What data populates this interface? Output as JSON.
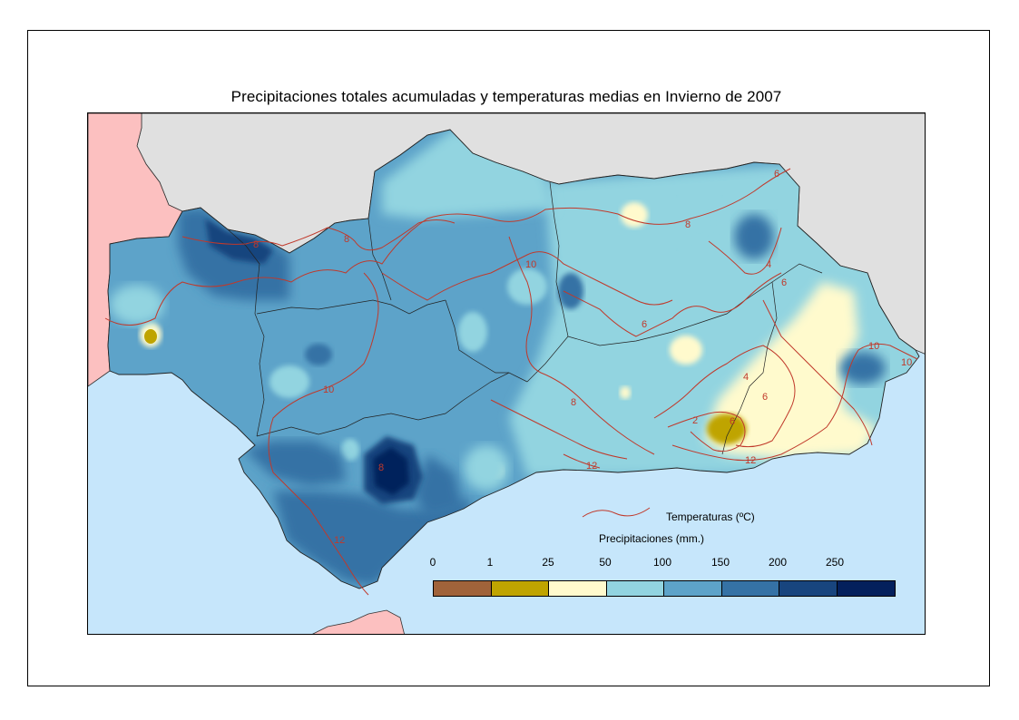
{
  "title": "Precipitaciones totales acumuladas y temperaturas medias en Invierno de 2007",
  "legend": {
    "temperature_label": "Temperaturas (ºC)",
    "temperature_color": "#c0392b",
    "precipitation_label": "Precipitaciones (mm.)",
    "ticks": [
      "0",
      "1",
      "25",
      "50",
      "100",
      "150",
      "200",
      "250"
    ],
    "classes": [
      {
        "range": "0-1",
        "color": "#a0633a"
      },
      {
        "range": "1-25",
        "color": "#bfa400"
      },
      {
        "range": "25-50",
        "color": "#fffacd"
      },
      {
        "range": "50-100",
        "color": "#92d4e0"
      },
      {
        "range": "100-150",
        "color": "#5da3c9"
      },
      {
        "range": "150-200",
        "color": "#3572a5"
      },
      {
        "range": "200-250",
        "color": "#18457e"
      },
      {
        "range": ">250",
        "color": "#04205c"
      }
    ]
  },
  "map": {
    "sea_color": "#c6e6fb",
    "neighbor_land_color": "#e0e0e0",
    "portugal_color": "#fcc0c0",
    "isotherm_labels": [
      "8",
      "8",
      "10",
      "8",
      "6",
      "6",
      "4",
      "6",
      "10",
      "10",
      "10",
      "8",
      "4",
      "6",
      "12",
      "8",
      "12",
      "12",
      "2",
      "6"
    ]
  }
}
